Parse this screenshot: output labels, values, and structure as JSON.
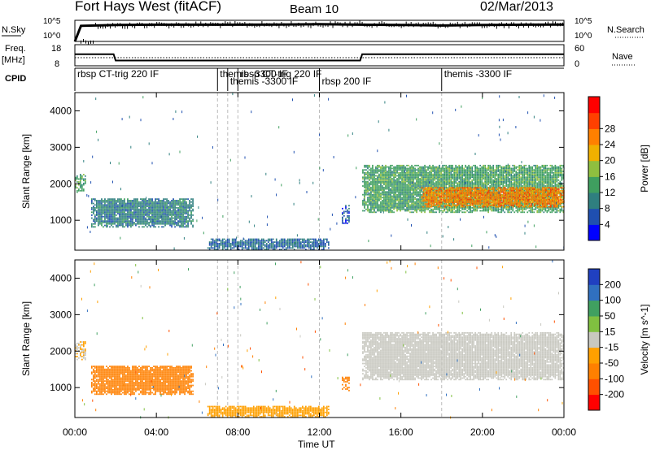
{
  "header": {
    "station": "Fort Hays West (fitACF)",
    "beam": "Beam 10",
    "date": "02/Mar/2013"
  },
  "aux_panels": {
    "nsky_label": "N.Sky",
    "nsky_ticks": [
      "10^5",
      "10^0"
    ],
    "nsearch_label": "N.Search",
    "nsearch_ticks": [
      "10^5",
      "10^0"
    ],
    "freq_label": "Freq.",
    "freq_unit": "[MHz]",
    "freq_ticks": [
      "18",
      "8"
    ],
    "nave_label": "Nave",
    "nave_ticks": [
      "60",
      "0"
    ],
    "cpid_label": "CPID"
  },
  "cpid_segments": [
    {
      "label": "rbsp CT-trig 220 IF",
      "start": 0,
      "end": 7.0
    },
    {
      "label": "themis -3300 IF",
      "start": 7.0,
      "end": 7.5
    },
    {
      "label": "themis -3300 IF",
      "start": 7.5,
      "end": 8.0
    },
    {
      "label": "rbsp CT-trig 220 IF",
      "start": 8.0,
      "end": 12.0
    },
    {
      "label": "rbsp 200 IF",
      "start": 12.0,
      "end": 18.0
    },
    {
      "label": "themis -3300 IF",
      "start": 18.0,
      "end": 24.0
    }
  ],
  "colors": {
    "power_scale": [
      "#0000ff",
      "#1f4fb0",
      "#2f7f7f",
      "#3f9f5f",
      "#8fbf3f",
      "#f0b000",
      "#ff8000",
      "#ff4000",
      "#ff0000"
    ],
    "velocity_scale": [
      "#2040c0",
      "#3070c0",
      "#40a060",
      "#80c040",
      "#c8c8c0",
      "#ffa000",
      "#ff8000",
      "#ff5000",
      "#ff0000"
    ]
  },
  "chart_data": [
    {
      "type": "line",
      "name": "N.Sky / N.Search",
      "x": [
        0,
        0.3,
        2,
        4,
        6,
        8,
        10,
        12,
        14,
        16,
        18,
        20,
        22,
        24
      ],
      "series": [
        {
          "name": "N.Sky",
          "values": [
            1,
            5000,
            8000,
            9000,
            9000,
            9000,
            10000,
            12000,
            9000,
            8000,
            6000,
            8000,
            9000,
            10000
          ]
        }
      ],
      "yscale": "log",
      "ylim": [
        1,
        100000
      ]
    },
    {
      "type": "line",
      "name": "Frequency / Nave",
      "x": [
        0,
        1.9,
        2.0,
        14.0,
        14.1,
        24
      ],
      "series": [
        {
          "name": "Freq.",
          "values": [
            13.5,
            13.5,
            10.5,
            10.5,
            13.5,
            13.5
          ]
        },
        {
          "name": "Nave",
          "values": [
            23,
            23,
            23,
            23,
            23,
            23
          ]
        }
      ],
      "ylim": [
        8,
        18
      ]
    },
    {
      "type": "heatmap",
      "name": "Power",
      "xlabel": "Time UT",
      "ylabel": "Slant Range [km]",
      "xticks": [
        "00:00",
        "04:00",
        "08:00",
        "12:00",
        "16:00",
        "20:00",
        "00:00"
      ],
      "xlim": [
        0,
        24
      ],
      "yticks": [
        1000,
        2000,
        3000,
        4000
      ],
      "ylim": [
        180,
        4500
      ],
      "colorbar_label": "Power [dB]",
      "colorbar_ticks": [
        4,
        8,
        12,
        16,
        20,
        24,
        28
      ],
      "regions": [
        {
          "t0": 0.0,
          "t1": 0.5,
          "r0": 1750,
          "r1": 2250,
          "level": 14
        },
        {
          "t0": 0.8,
          "t1": 5.8,
          "r0": 800,
          "r1": 1600,
          "level": 10
        },
        {
          "t0": 13.1,
          "t1": 13.5,
          "r0": 900,
          "r1": 1400,
          "level": 6
        },
        {
          "t0": 14.1,
          "t1": 24.0,
          "r0": 1200,
          "r1": 2500,
          "level": 14
        },
        {
          "t0": 17.0,
          "t1": 24.0,
          "r0": 1350,
          "r1": 1900,
          "level": 26
        },
        {
          "t0": 6.5,
          "t1": 12.5,
          "r0": 180,
          "r1": 500,
          "level": 8
        }
      ]
    },
    {
      "type": "heatmap",
      "name": "Velocity",
      "xlabel": "Time UT",
      "ylabel": "Slant Range [km]",
      "xticks": [
        "00:00",
        "04:00",
        "08:00",
        "12:00",
        "16:00",
        "20:00",
        "00:00"
      ],
      "xlim": [
        0,
        24
      ],
      "yticks": [
        1000,
        2000,
        3000,
        4000
      ],
      "ylim": [
        180,
        4500
      ],
      "colorbar_label": "Velocity [m s^-1]",
      "colorbar_ticks": [
        200,
        100,
        50,
        15,
        -15,
        -50,
        -100,
        -200
      ],
      "regions": [
        {
          "t0": 0.0,
          "t1": 0.5,
          "r0": 1750,
          "r1": 2250,
          "level": -15
        },
        {
          "t0": 0.8,
          "t1": 5.8,
          "r0": 800,
          "r1": 1600,
          "level": -80
        },
        {
          "t0": 13.1,
          "t1": 13.5,
          "r0": 900,
          "r1": 1300,
          "level": -60
        },
        {
          "t0": 14.1,
          "t1": 24.0,
          "r0": 1200,
          "r1": 2500,
          "level": 0
        },
        {
          "t0": 6.5,
          "t1": 12.5,
          "r0": 180,
          "r1": 500,
          "level": -40
        }
      ]
    }
  ]
}
